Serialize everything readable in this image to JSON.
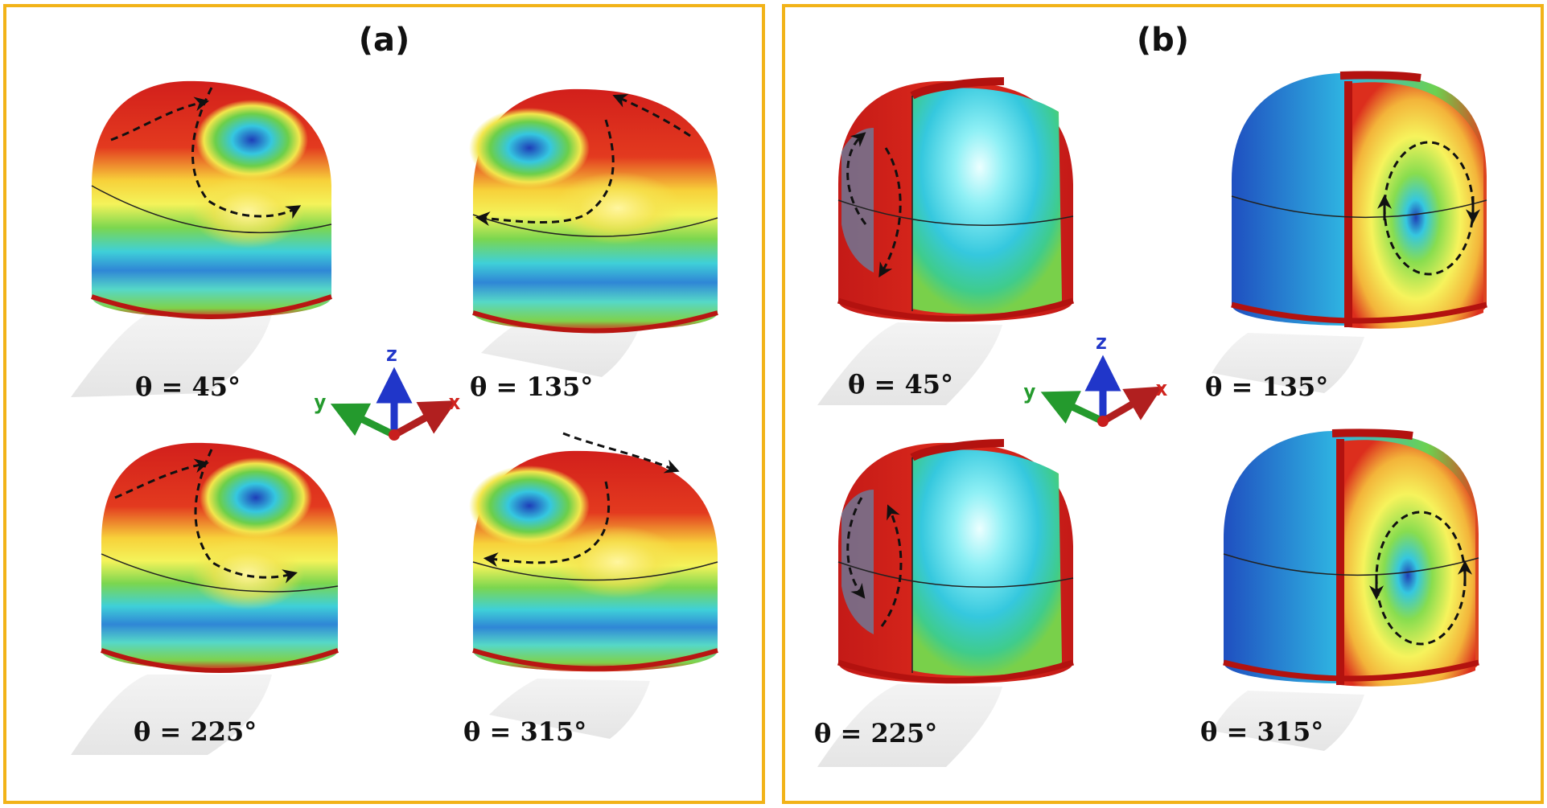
{
  "panels": [
    {
      "id": "a",
      "label": "(a)",
      "views": [
        {
          "angle": "θ = 45°"
        },
        {
          "angle": "θ = 135°"
        },
        {
          "angle": "θ = 225°"
        },
        {
          "angle": "θ = 315°"
        }
      ]
    },
    {
      "id": "b",
      "label": "(b)",
      "views": [
        {
          "angle": "θ = 45°"
        },
        {
          "angle": "θ = 135°"
        },
        {
          "angle": "θ = 225°"
        },
        {
          "angle": "θ = 315°"
        }
      ]
    }
  ],
  "axes": {
    "x": "x",
    "y": "y",
    "z": "z"
  },
  "colors": {
    "border": "#F2B318",
    "high": "#d7261e",
    "mid": "#f6e84a",
    "low": "#1a3fb0",
    "cyan": "#39d3e6",
    "green": "#6ccf4a"
  }
}
